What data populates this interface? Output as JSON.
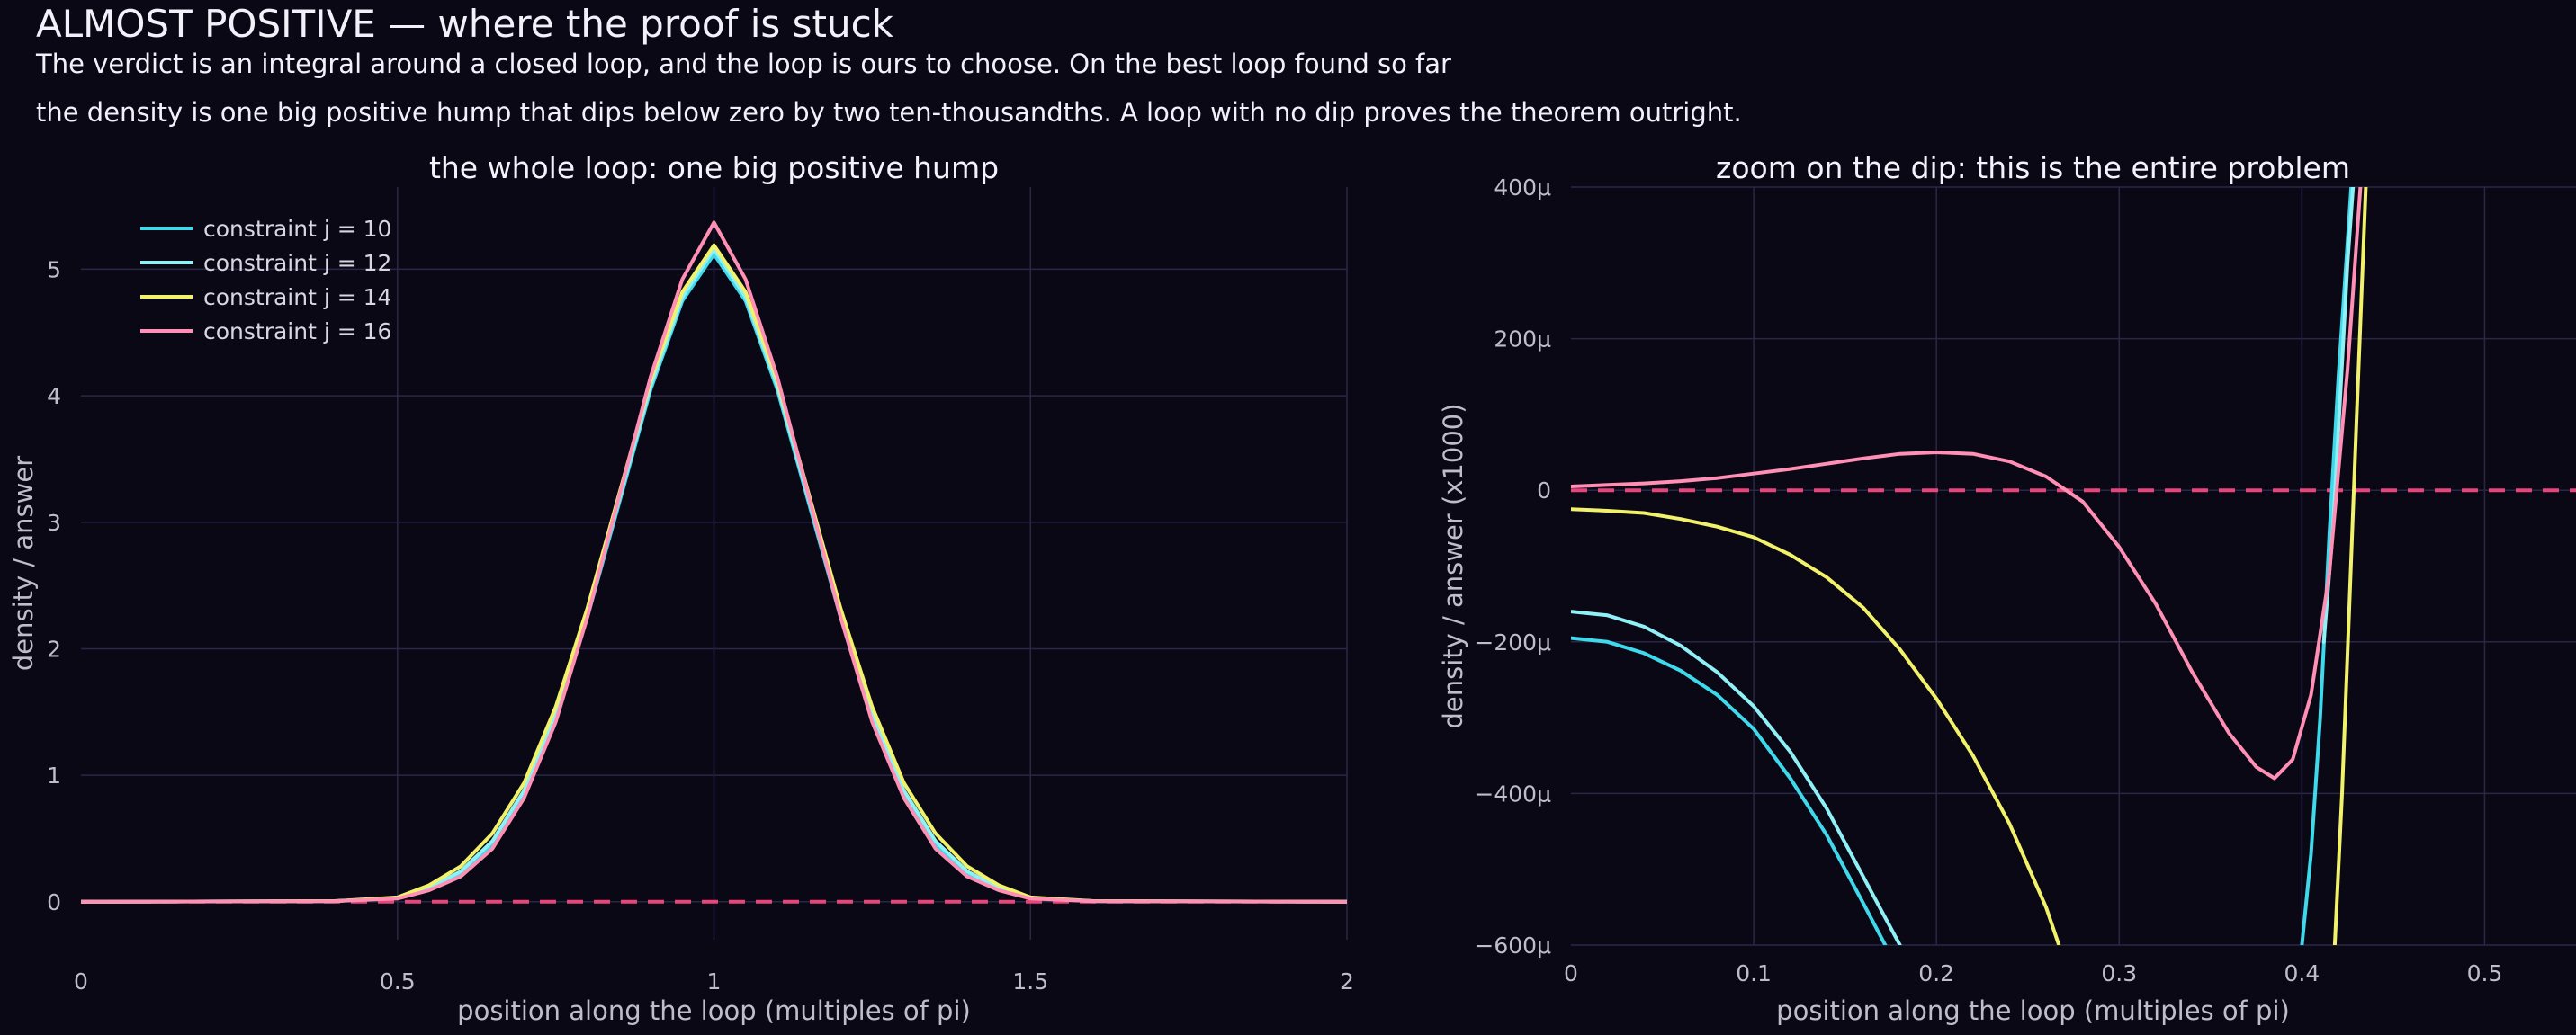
{
  "header": {
    "title": "ALMOST POSITIVE — where the proof is stuck",
    "subtitle_line1": "The verdict is an integral around a closed loop, and the loop is ours to choose. On the best loop found so far",
    "subtitle_line2": "the density is one big positive hump that dips below zero by two ten-thousandths. A loop with no dip proves the theorem outright."
  },
  "colors": {
    "background": "#0b0816",
    "grid": "#2a2746",
    "zero_line": "#e8457a",
    "series": [
      "#3fd9ec",
      "#8ff0f5",
      "#f2f26a",
      "#ff8fb4"
    ]
  },
  "chart_data": [
    {
      "type": "line",
      "title": "the whole loop: one big positive hump",
      "xlabel": "position along the loop (multiples of pi)",
      "ylabel": "density / answer",
      "xlim": [
        0,
        2
      ],
      "ylim": [
        -0.3,
        5.65
      ],
      "xticks": [
        0,
        0.5,
        1,
        1.5,
        2
      ],
      "xtick_labels": [
        "0",
        "0.5",
        "1",
        "1.5",
        "2"
      ],
      "yticks": [
        0,
        1,
        2,
        3,
        4,
        5
      ],
      "ytick_labels": [
        "0",
        "1",
        "2",
        "3",
        "4",
        "5"
      ],
      "grid": true,
      "legend": "top-left",
      "reference_line": {
        "y": 0,
        "style": "dashed"
      },
      "x": [
        0,
        0.4,
        0.5,
        0.55,
        0.6,
        0.65,
        0.7,
        0.75,
        0.8,
        0.85,
        0.9,
        0.95,
        1.0,
        1.05,
        1.1,
        1.15,
        1.2,
        1.25,
        1.3,
        1.35,
        1.4,
        1.45,
        1.5,
        1.6,
        2.0
      ],
      "series": [
        {
          "name": "constraint j = 10",
          "values": [
            0,
            0.005,
            0.03,
            0.1,
            0.22,
            0.45,
            0.85,
            1.45,
            2.25,
            3.15,
            4.05,
            4.75,
            5.12,
            4.75,
            4.05,
            3.15,
            2.25,
            1.45,
            0.85,
            0.45,
            0.22,
            0.1,
            0.03,
            0.005,
            0
          ]
        },
        {
          "name": "constraint j = 12",
          "values": [
            0,
            0.005,
            0.03,
            0.11,
            0.24,
            0.48,
            0.88,
            1.48,
            2.28,
            3.18,
            4.08,
            4.78,
            5.16,
            4.78,
            4.08,
            3.18,
            2.28,
            1.48,
            0.88,
            0.48,
            0.24,
            0.11,
            0.03,
            0.005,
            0
          ]
        },
        {
          "name": "constraint j = 14",
          "values": [
            0,
            0.006,
            0.035,
            0.13,
            0.28,
            0.54,
            0.94,
            1.54,
            2.32,
            3.22,
            4.12,
            4.82,
            5.19,
            4.82,
            4.12,
            3.22,
            2.32,
            1.54,
            0.94,
            0.54,
            0.28,
            0.13,
            0.035,
            0.006,
            0
          ]
        },
        {
          "name": "constraint j = 16",
          "values": [
            0,
            0.004,
            0.025,
            0.09,
            0.2,
            0.42,
            0.82,
            1.42,
            2.25,
            3.2,
            4.15,
            4.92,
            5.37,
            4.92,
            4.15,
            3.2,
            2.25,
            1.42,
            0.82,
            0.42,
            0.2,
            0.09,
            0.025,
            0.004,
            0
          ]
        }
      ]
    },
    {
      "type": "line",
      "title": "zoom on the dip: this is the entire problem",
      "xlabel": "position along the loop (multiples of pi)",
      "ylabel": "density / answer  (x1000)",
      "xlim": [
        0,
        0.55
      ],
      "ylim": [
        -600,
        400
      ],
      "xticks": [
        0,
        0.1,
        0.2,
        0.3,
        0.4,
        0.5
      ],
      "xtick_labels": [
        "0",
        "0.1",
        "0.2",
        "0.3",
        "0.4",
        "0.5"
      ],
      "yticks": [
        -600,
        -400,
        -200,
        0,
        200,
        400
      ],
      "ytick_labels": [
        "−600μ",
        "−400μ",
        "−200μ",
        "0",
        "200μ",
        "400μ"
      ],
      "grid": true,
      "reference_line": {
        "y": 0,
        "style": "dashed"
      },
      "series": [
        {
          "name": "constraint j = 10",
          "points": [
            [
              0,
              -195
            ],
            [
              0.02,
              -200
            ],
            [
              0.04,
              -215
            ],
            [
              0.06,
              -238
            ],
            [
              0.08,
              -270
            ],
            [
              0.1,
              -315
            ],
            [
              0.12,
              -380
            ],
            [
              0.14,
              -455
            ],
            [
              0.16,
              -545
            ],
            [
              0.172,
              -600
            ]
          ],
          "points_tail": [
            [
              0.4,
              -600
            ],
            [
              0.405,
              -480
            ],
            [
              0.41,
              -300
            ],
            [
              0.415,
              -60
            ],
            [
              0.42,
              150
            ],
            [
              0.427,
              400
            ]
          ]
        },
        {
          "name": "constraint j = 12",
          "points": [
            [
              0,
              -160
            ],
            [
              0.02,
              -165
            ],
            [
              0.04,
              -180
            ],
            [
              0.06,
              -205
            ],
            [
              0.08,
              -240
            ],
            [
              0.1,
              -285
            ],
            [
              0.12,
              -345
            ],
            [
              0.14,
              -420
            ],
            [
              0.16,
              -510
            ],
            [
              0.18,
              -600
            ]
          ],
          "points_tail": [
            [
              0.412,
              -200
            ],
            [
              0.417,
              -50
            ],
            [
              0.42,
              80
            ],
            [
              0.425,
              300
            ],
            [
              0.428,
              400
            ]
          ]
        },
        {
          "name": "constraint j = 14",
          "points": [
            [
              0,
              -25
            ],
            [
              0.02,
              -27
            ],
            [
              0.04,
              -30
            ],
            [
              0.06,
              -38
            ],
            [
              0.08,
              -48
            ],
            [
              0.1,
              -62
            ],
            [
              0.12,
              -85
            ],
            [
              0.14,
              -115
            ],
            [
              0.16,
              -155
            ],
            [
              0.18,
              -210
            ],
            [
              0.2,
              -275
            ],
            [
              0.22,
              -350
            ],
            [
              0.24,
              -440
            ],
            [
              0.26,
              -550
            ],
            [
              0.267,
              -600
            ]
          ],
          "points_tail": [
            [
              0.418,
              -600
            ],
            [
              0.422,
              -400
            ],
            [
              0.426,
              -150
            ],
            [
              0.43,
              100
            ],
            [
              0.435,
              400
            ]
          ]
        },
        {
          "name": "constraint j = 16",
          "points": [
            [
              0,
              5
            ],
            [
              0.02,
              7
            ],
            [
              0.04,
              9
            ],
            [
              0.06,
              12
            ],
            [
              0.08,
              16
            ],
            [
              0.1,
              22
            ],
            [
              0.12,
              28
            ],
            [
              0.14,
              35
            ],
            [
              0.16,
              42
            ],
            [
              0.18,
              48
            ],
            [
              0.2,
              50
            ],
            [
              0.22,
              48
            ],
            [
              0.24,
              38
            ],
            [
              0.26,
              18
            ],
            [
              0.28,
              -15
            ],
            [
              0.3,
              -75
            ],
            [
              0.32,
              -150
            ],
            [
              0.34,
              -240
            ],
            [
              0.36,
              -320
            ],
            [
              0.375,
              -365
            ],
            [
              0.385,
              -380
            ],
            [
              0.395,
              -355
            ],
            [
              0.405,
              -270
            ],
            [
              0.415,
              -110
            ],
            [
              0.425,
              160
            ],
            [
              0.432,
              400
            ]
          ]
        }
      ]
    }
  ]
}
